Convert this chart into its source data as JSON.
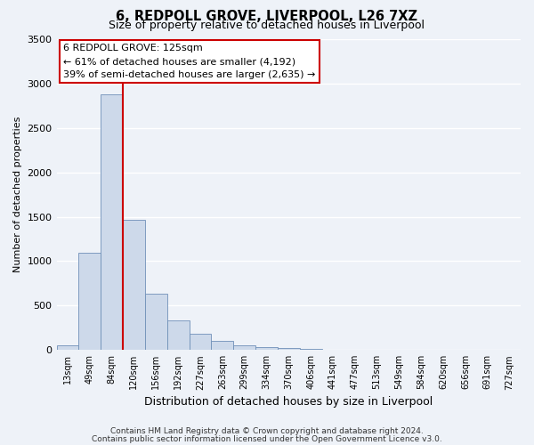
{
  "title": "6, REDPOLL GROVE, LIVERPOOL, L26 7XZ",
  "subtitle": "Size of property relative to detached houses in Liverpool",
  "xlabel": "Distribution of detached houses by size in Liverpool",
  "ylabel": "Number of detached properties",
  "bar_color": "#cdd9ea",
  "bar_edge_color": "#7090b8",
  "bin_labels": [
    "13sqm",
    "49sqm",
    "84sqm",
    "120sqm",
    "156sqm",
    "192sqm",
    "227sqm",
    "263sqm",
    "299sqm",
    "334sqm",
    "370sqm",
    "406sqm",
    "441sqm",
    "477sqm",
    "513sqm",
    "549sqm",
    "584sqm",
    "620sqm",
    "656sqm",
    "691sqm",
    "727sqm"
  ],
  "bar_values": [
    48,
    1090,
    2880,
    1470,
    630,
    330,
    185,
    100,
    50,
    30,
    18,
    10,
    5,
    4,
    3,
    2,
    2,
    2,
    2,
    2,
    0
  ],
  "ylim": [
    0,
    3500
  ],
  "yticks": [
    0,
    500,
    1000,
    1500,
    2000,
    2500,
    3000,
    3500
  ],
  "vline_color": "#cc0000",
  "annotation_title": "6 REDPOLL GROVE: 125sqm",
  "annotation_line1": "← 61% of detached houses are smaller (4,192)",
  "annotation_line2": "39% of semi-detached houses are larger (2,635) →",
  "annotation_box_color": "#ffffff",
  "annotation_box_edge": "#cc0000",
  "footer_line1": "Contains HM Land Registry data © Crown copyright and database right 2024.",
  "footer_line2": "Contains public sector information licensed under the Open Government Licence v3.0.",
  "background_color": "#eef2f8",
  "grid_color": "#ffffff"
}
